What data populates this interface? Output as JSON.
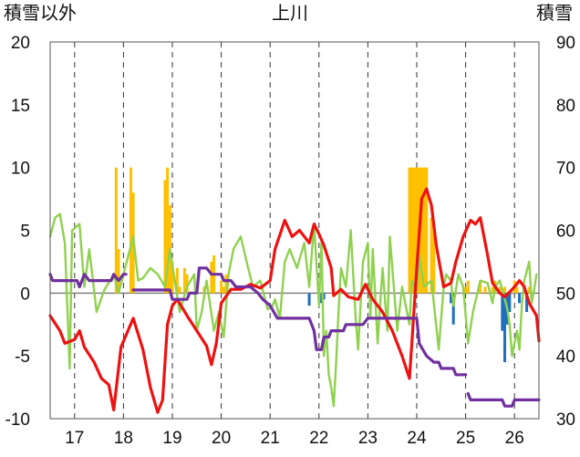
{
  "chart_data": {
    "type": "line",
    "title": "上川",
    "ylabel_left": "積雪以外",
    "ylabel_right": "積雪",
    "x_ticks": [
      "17",
      "18",
      "19",
      "20",
      "21",
      "22",
      "23",
      "24",
      "25",
      "26"
    ],
    "x_range": [
      16.5,
      26.5
    ],
    "y_left_ticks": [
      "20",
      "15",
      "10",
      "5",
      "0",
      "-5",
      "-10"
    ],
    "y_left_range": [
      -10,
      20
    ],
    "y_right_ticks": [
      "90",
      "80",
      "70",
      "60",
      "50",
      "40",
      "30"
    ],
    "y_right_range": [
      30,
      90
    ],
    "grid": "vertical-dashed",
    "colors": {
      "temperature": "#ee1111",
      "green_series": "#8fd14f",
      "snow_depth": "#7030a0",
      "precipitation": "#ffc000",
      "negative_bars": "#1f6fbf",
      "zero_line": "#808080"
    },
    "series": [
      {
        "axis": "left",
        "color": "#ee1111",
        "points": [
          [
            16.5,
            -1.8
          ],
          [
            16.7,
            -3.0
          ],
          [
            16.8,
            -4.0
          ],
          [
            17.0,
            -3.7
          ],
          [
            17.1,
            -3.0
          ],
          [
            17.2,
            -4.3
          ],
          [
            17.4,
            -5.5
          ],
          [
            17.55,
            -6.8
          ],
          [
            17.7,
            -7.3
          ],
          [
            17.8,
            -9.3
          ],
          [
            17.9,
            -6.0
          ],
          [
            17.95,
            -4.3
          ],
          [
            18.2,
            -2.0
          ],
          [
            18.4,
            -4.5
          ],
          [
            18.55,
            -7.5
          ],
          [
            18.7,
            -9.5
          ],
          [
            18.8,
            -8.5
          ],
          [
            18.9,
            -2.5
          ],
          [
            19.0,
            -1.0
          ],
          [
            19.1,
            -0.5
          ],
          [
            19.3,
            -1.8
          ],
          [
            19.5,
            -3.0
          ],
          [
            19.7,
            -4.2
          ],
          [
            19.8,
            -5.7
          ],
          [
            19.9,
            -4.0
          ],
          [
            20.0,
            -0.8
          ],
          [
            20.2,
            0.3
          ],
          [
            20.4,
            0.3
          ],
          [
            20.6,
            0.7
          ],
          [
            20.8,
            0.4
          ],
          [
            21.0,
            1.0
          ],
          [
            21.1,
            3.5
          ],
          [
            21.3,
            5.8
          ],
          [
            21.45,
            4.5
          ],
          [
            21.6,
            5.0
          ],
          [
            21.8,
            4.0
          ],
          [
            21.9,
            5.5
          ],
          [
            22.0,
            4.7
          ],
          [
            22.1,
            3.8
          ],
          [
            22.25,
            2.0
          ],
          [
            22.3,
            -0.2
          ],
          [
            22.45,
            0.3
          ],
          [
            22.6,
            -0.3
          ],
          [
            22.8,
            -0.5
          ],
          [
            22.95,
            0.7
          ],
          [
            23.1,
            -0.5
          ],
          [
            23.3,
            -1.5
          ],
          [
            23.5,
            -3.0
          ],
          [
            23.7,
            -5.0
          ],
          [
            23.85,
            -6.8
          ],
          [
            23.9,
            -4.0
          ],
          [
            24.0,
            2.0
          ],
          [
            24.1,
            7.5
          ],
          [
            24.2,
            8.3
          ],
          [
            24.3,
            7.0
          ],
          [
            24.4,
            3.8
          ],
          [
            24.55,
            0.5
          ],
          [
            24.7,
            0.8
          ],
          [
            24.8,
            2.5
          ],
          [
            24.95,
            4.5
          ],
          [
            25.1,
            5.8
          ],
          [
            25.2,
            5.5
          ],
          [
            25.3,
            6.0
          ],
          [
            25.45,
            3.0
          ],
          [
            25.55,
            0.8
          ],
          [
            25.7,
            0.0
          ],
          [
            25.8,
            -0.3
          ],
          [
            26.0,
            0.5
          ],
          [
            26.1,
            1.0
          ],
          [
            26.2,
            0.5
          ],
          [
            26.3,
            -0.8
          ],
          [
            26.45,
            -1.8
          ],
          [
            26.5,
            -3.8
          ]
        ]
      },
      {
        "axis": "left",
        "color": "#8fd14f",
        "points": [
          [
            16.5,
            4.5
          ],
          [
            16.6,
            6.0
          ],
          [
            16.7,
            6.3
          ],
          [
            16.8,
            4.0
          ],
          [
            16.9,
            -6.0
          ],
          [
            16.95,
            5.0
          ],
          [
            17.1,
            5.5
          ],
          [
            17.2,
            0.5
          ],
          [
            17.3,
            3.5
          ],
          [
            17.45,
            -1.5
          ],
          [
            17.6,
            0.2
          ],
          [
            17.8,
            1.5
          ],
          [
            17.9,
            0.0
          ],
          [
            18.0,
            1.5
          ],
          [
            18.2,
            4.5
          ],
          [
            18.3,
            1.0
          ],
          [
            18.4,
            1.2
          ],
          [
            18.55,
            2.0
          ],
          [
            18.7,
            1.5
          ],
          [
            18.85,
            0.5
          ],
          [
            18.95,
            3.5
          ],
          [
            19.05,
            1.0
          ],
          [
            19.15,
            -1.5
          ],
          [
            19.3,
            0.5
          ],
          [
            19.45,
            1.5
          ],
          [
            19.5,
            -3.0
          ],
          [
            19.6,
            -1.5
          ],
          [
            19.7,
            1.0
          ],
          [
            19.85,
            -3.0
          ],
          [
            19.95,
            -1.5
          ],
          [
            20.05,
            -3.5
          ],
          [
            20.15,
            1.5
          ],
          [
            20.25,
            3.5
          ],
          [
            20.4,
            4.5
          ],
          [
            20.55,
            2.0
          ],
          [
            20.65,
            0.5
          ],
          [
            20.8,
            1.0
          ],
          [
            20.95,
            -1.3
          ],
          [
            21.05,
            -1.0
          ],
          [
            21.1,
            -0.5
          ],
          [
            21.2,
            -2.0
          ],
          [
            21.3,
            2.5
          ],
          [
            21.4,
            3.5
          ],
          [
            21.55,
            2.0
          ],
          [
            21.7,
            4.0
          ],
          [
            21.8,
            0.5
          ],
          [
            21.9,
            5.5
          ],
          [
            22.0,
            -1.0
          ],
          [
            22.05,
            4.0
          ],
          [
            22.1,
            -5.0
          ],
          [
            22.15,
            -3.0
          ],
          [
            22.2,
            -6.5
          ],
          [
            22.25,
            -7.5
          ],
          [
            22.3,
            -9.0
          ],
          [
            22.35,
            -5.5
          ],
          [
            22.4,
            -1.5
          ],
          [
            22.45,
            2.0
          ],
          [
            22.55,
            0.5
          ],
          [
            22.65,
            5.0
          ],
          [
            22.75,
            -2.0
          ],
          [
            22.8,
            -4.5
          ],
          [
            22.9,
            2.5
          ],
          [
            23.0,
            4.0
          ],
          [
            23.05,
            -2.0
          ],
          [
            23.1,
            3.5
          ],
          [
            23.2,
            -4.0
          ],
          [
            23.3,
            2.0
          ],
          [
            23.4,
            -3.0
          ],
          [
            23.45,
            4.5
          ],
          [
            23.6,
            -3.0
          ],
          [
            23.7,
            0.5
          ],
          [
            23.85,
            -2.5
          ],
          [
            23.9,
            1.0
          ],
          [
            24.0,
            0.0
          ],
          [
            24.05,
            3.0
          ],
          [
            24.15,
            0.5
          ],
          [
            24.3,
            1.0
          ],
          [
            24.45,
            -4.5
          ],
          [
            24.55,
            0.5
          ],
          [
            24.6,
            1.5
          ],
          [
            24.7,
            1.0
          ],
          [
            24.75,
            -1.0
          ],
          [
            24.85,
            1.5
          ],
          [
            24.95,
            0.5
          ],
          [
            25.05,
            -4.0
          ],
          [
            25.15,
            -1.5
          ],
          [
            25.3,
            1.0
          ],
          [
            25.45,
            0.8
          ],
          [
            25.55,
            -0.8
          ],
          [
            25.6,
            0.5
          ],
          [
            25.7,
            1.0
          ],
          [
            25.85,
            -1.2
          ],
          [
            25.9,
            -2.5
          ],
          [
            25.95,
            -5.0
          ],
          [
            26.05,
            -3.0
          ],
          [
            26.1,
            -4.5
          ],
          [
            26.15,
            -1.0
          ],
          [
            26.2,
            1.0
          ],
          [
            26.3,
            2.5
          ],
          [
            26.35,
            -0.8
          ],
          [
            26.4,
            0.2
          ],
          [
            26.45,
            1.5
          ]
        ]
      },
      {
        "axis": "right",
        "color": "#7030a0",
        "points": [
          [
            16.5,
            53.0
          ],
          [
            16.55,
            52.0
          ],
          [
            17.05,
            52.0
          ],
          [
            17.1,
            51.0
          ],
          [
            17.2,
            53.0
          ],
          [
            17.3,
            52.0
          ],
          [
            17.75,
            52.0
          ],
          [
            17.8,
            53.0
          ],
          [
            17.9,
            52.0
          ],
          [
            18.0,
            53.0
          ],
          [
            18.05,
            53.0
          ],
          [
            null,
            null
          ],
          [
            18.2,
            50.5
          ],
          [
            18.95,
            50.5
          ],
          [
            19.0,
            49.0
          ],
          [
            19.3,
            49.0
          ],
          [
            19.35,
            50.0
          ],
          [
            19.5,
            50.0
          ],
          [
            19.55,
            54.0
          ],
          [
            19.7,
            54.0
          ],
          [
            19.8,
            53.0
          ],
          [
            20.0,
            53.0
          ],
          [
            20.05,
            52.0
          ],
          [
            20.2,
            52.0
          ],
          [
            20.3,
            51.0
          ],
          [
            20.6,
            51.0
          ],
          [
            20.75,
            50.0
          ],
          [
            20.85,
            49.0
          ],
          [
            21.0,
            48.0
          ],
          [
            21.15,
            46.0
          ],
          [
            21.5,
            46.0
          ],
          [
            21.8,
            46.0
          ],
          [
            21.9,
            44.0
          ],
          [
            21.95,
            41.0
          ],
          [
            22.05,
            41.0
          ],
          [
            22.1,
            43.0
          ],
          [
            22.2,
            43.0
          ],
          [
            22.25,
            44.0
          ],
          [
            22.5,
            44.0
          ],
          [
            22.55,
            45.0
          ],
          [
            22.9,
            45.0
          ],
          [
            23.0,
            46.0
          ],
          [
            23.3,
            46.0
          ],
          [
            24.0,
            46.0
          ],
          [
            24.05,
            42.0
          ],
          [
            24.2,
            40.0
          ],
          [
            24.35,
            39.0
          ],
          [
            24.45,
            39.0
          ],
          [
            24.5,
            38.0
          ],
          [
            24.75,
            38.0
          ],
          [
            24.8,
            37.0
          ],
          [
            25.0,
            37.0
          ],
          [
            null,
            null
          ],
          [
            25.05,
            34.0
          ],
          [
            25.1,
            33.0
          ],
          [
            25.75,
            33.0
          ],
          [
            25.8,
            32.0
          ],
          [
            25.95,
            32.0
          ],
          [
            26.0,
            33.0
          ],
          [
            26.5,
            33.0
          ]
        ]
      }
    ],
    "bars_positive": [
      [
        17.85,
        10.0
      ],
      [
        17.9,
        3.5
      ],
      [
        18.15,
        10.0
      ],
      [
        18.2,
        8.0
      ],
      [
        18.85,
        9.0
      ],
      [
        18.9,
        10.0
      ],
      [
        18.95,
        7.0
      ],
      [
        19.0,
        2.5
      ],
      [
        19.1,
        2.0
      ],
      [
        19.15,
        0.5
      ],
      [
        19.25,
        2.0
      ],
      [
        19.3,
        1.5
      ],
      [
        19.65,
        0.5
      ],
      [
        19.8,
        2.5
      ],
      [
        19.85,
        3.0
      ],
      [
        20.0,
        1.0
      ],
      [
        20.05,
        0.5
      ],
      [
        20.1,
        1.5
      ],
      [
        23.85,
        10.0
      ],
      [
        23.9,
        10.0
      ],
      [
        23.95,
        10.0
      ],
      [
        24.0,
        10.0
      ],
      [
        24.05,
        10.0
      ],
      [
        24.1,
        10.0
      ],
      [
        24.15,
        10.0
      ],
      [
        24.2,
        10.0
      ],
      [
        24.3,
        6.0
      ],
      [
        24.35,
        5.0
      ],
      [
        25.0,
        0.5
      ],
      [
        25.05,
        1.0
      ],
      [
        25.3,
        1.0
      ],
      [
        25.4,
        0.5
      ],
      [
        25.55,
        0.5
      ],
      [
        25.6,
        1.0
      ],
      [
        25.7,
        0.5
      ],
      [
        25.8,
        0.5
      ],
      [
        26.0,
        1.0
      ],
      [
        26.05,
        0.5
      ],
      [
        26.2,
        0.5
      ],
      [
        26.3,
        0.5
      ]
    ],
    "bars_negative": [
      [
        21.8,
        -1.0
      ],
      [
        22.05,
        -0.8
      ],
      [
        22.1,
        -0.5
      ],
      [
        24.7,
        -0.8
      ],
      [
        24.75,
        -2.5
      ],
      [
        25.75,
        -3.0
      ],
      [
        25.8,
        -5.5
      ],
      [
        25.85,
        -2.5
      ],
      [
        25.9,
        -1.5
      ],
      [
        26.1,
        -0.8
      ],
      [
        26.25,
        -1.5
      ]
    ]
  }
}
